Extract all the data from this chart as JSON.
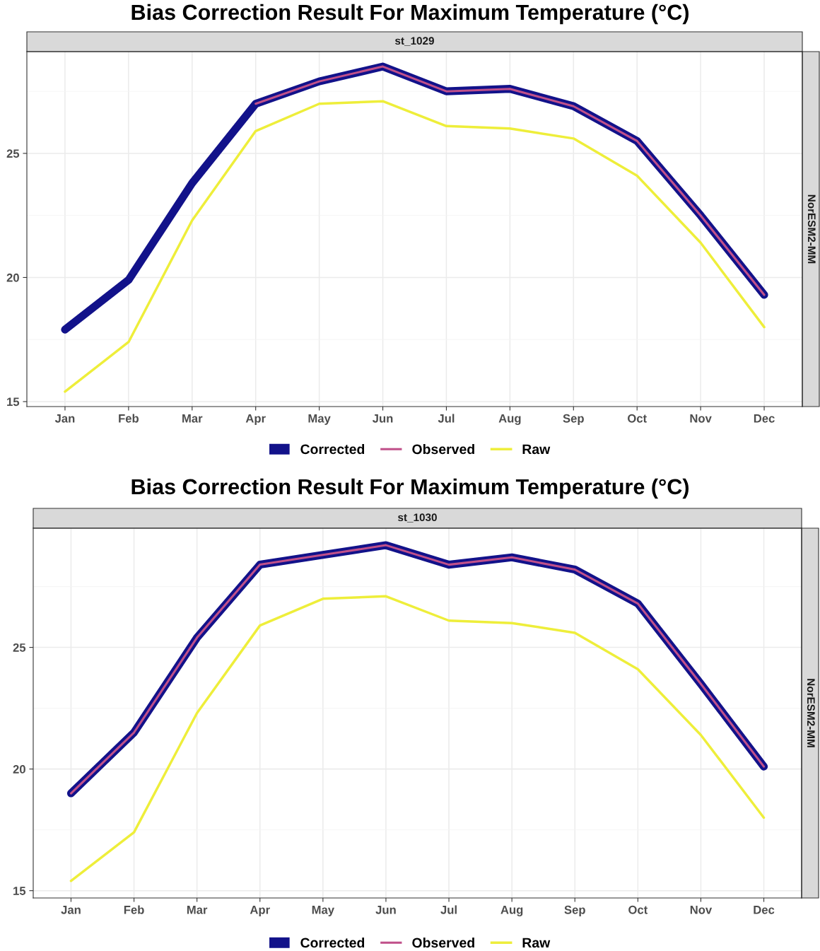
{
  "chart_data": [
    {
      "type": "line",
      "title": "Bias Correction Result For Maximum Temperature (°C)",
      "subtitle": "st_1029",
      "annotations": [
        "NorESM2-MM"
      ],
      "categories": [
        "Jan",
        "Feb",
        "Mar",
        "Apr",
        "May",
        "Jun",
        "Jul",
        "Aug",
        "Sep",
        "Oct",
        "Nov",
        "Dec"
      ],
      "series": [
        {
          "name": "Corrected",
          "color": "#12128a",
          "values": [
            17.9,
            19.9,
            23.8,
            27.0,
            27.9,
            28.5,
            27.5,
            27.6,
            26.9,
            25.5,
            22.5,
            19.3
          ]
        },
        {
          "name": "Observed",
          "color": "#c0508a",
          "values": [
            null,
            null,
            null,
            27.0,
            27.9,
            28.5,
            27.5,
            27.6,
            26.9,
            25.5,
            22.5,
            19.3
          ]
        },
        {
          "name": "Raw",
          "color": "#eeee3a",
          "values": [
            15.4,
            17.4,
            22.3,
            25.9,
            27.0,
            27.1,
            26.1,
            26.0,
            25.6,
            24.1,
            21.4,
            18.0
          ]
        }
      ],
      "ylim": [
        14.8,
        29.1
      ],
      "yticks": [
        15,
        20,
        25
      ],
      "grid": true,
      "legend": "bottom",
      "marker": "none",
      "line_style": "solid"
    },
    {
      "type": "line",
      "title": "Bias Correction Result For Maximum Temperature (°C)",
      "subtitle": "st_1030",
      "annotations": [
        "NorESM2-MM"
      ],
      "categories": [
        "Jan",
        "Feb",
        "Mar",
        "Apr",
        "May",
        "Jun",
        "Jul",
        "Aug",
        "Sep",
        "Oct",
        "Nov",
        "Dec"
      ],
      "series": [
        {
          "name": "Corrected",
          "color": "#12128a",
          "values": [
            19.0,
            21.5,
            25.4,
            28.4,
            28.8,
            29.2,
            28.4,
            28.7,
            28.2,
            26.8,
            23.5,
            20.1
          ]
        },
        {
          "name": "Observed",
          "color": "#c0508a",
          "values": [
            19.0,
            21.5,
            25.4,
            28.4,
            28.8,
            29.2,
            28.4,
            28.7,
            28.2,
            26.8,
            23.5,
            20.1
          ]
        },
        {
          "name": "Raw",
          "color": "#eeee3a",
          "values": [
            15.4,
            17.4,
            22.3,
            25.9,
            27.0,
            27.1,
            26.1,
            26.0,
            25.6,
            24.1,
            21.4,
            18.0
          ]
        }
      ],
      "ylim": [
        14.7,
        29.9
      ],
      "yticks": [
        15,
        20,
        25
      ],
      "grid": true,
      "legend": "bottom",
      "marker": "none",
      "line_style": "solid"
    }
  ]
}
